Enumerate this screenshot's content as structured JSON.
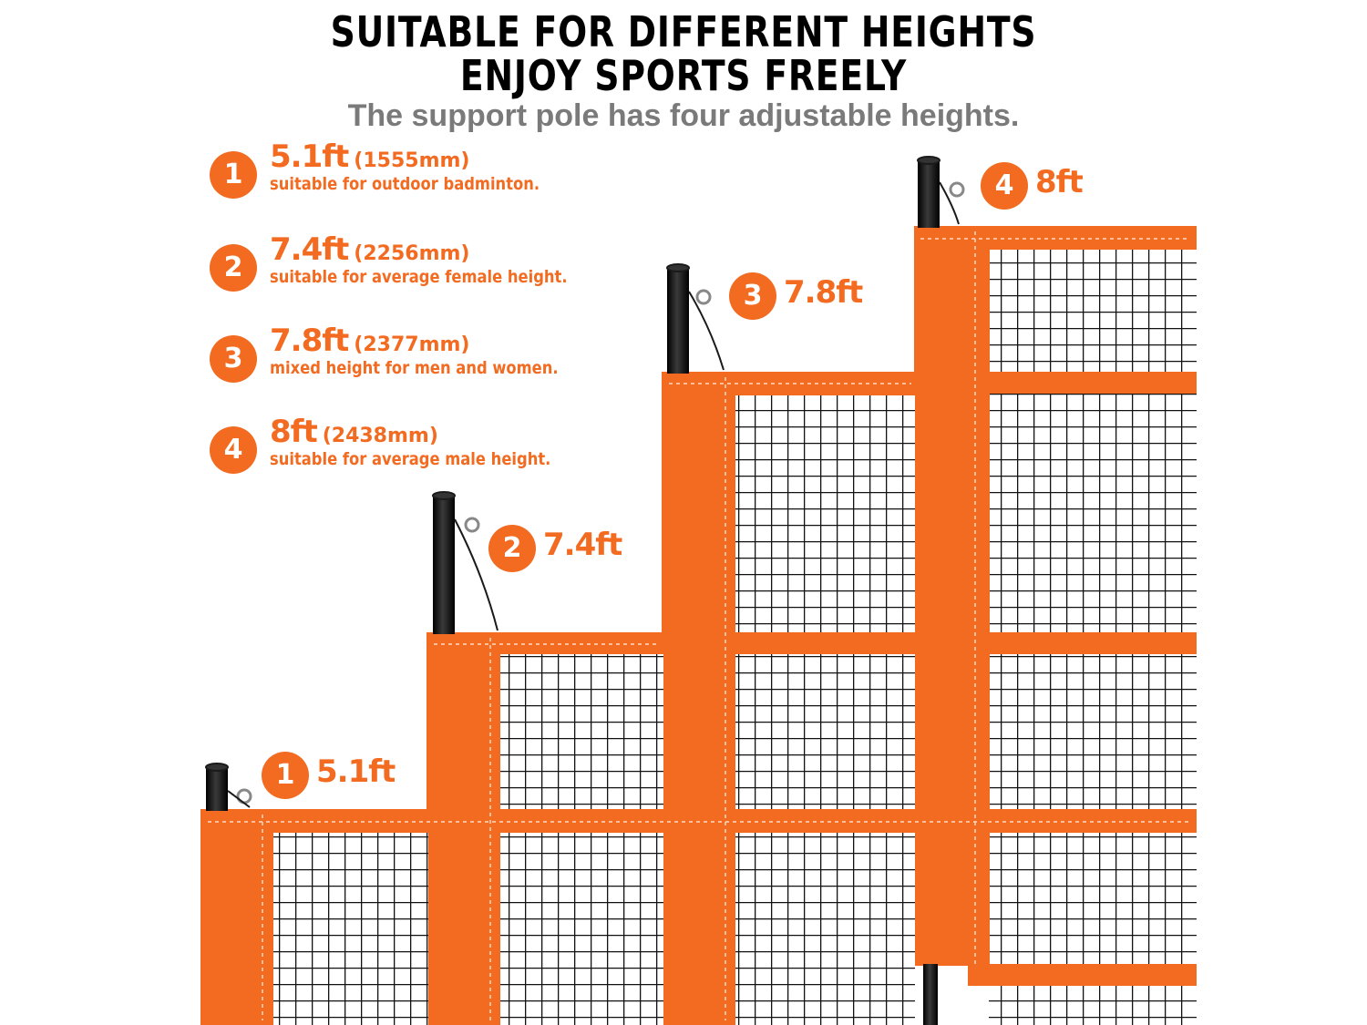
{
  "header": {
    "title_line1": "SUITABLE FOR DIFFERENT HEIGHTS",
    "title_line2": "ENJOY SPORTS FREELY",
    "subtitle": "The support pole has four adjustable heights."
  },
  "specs": [
    {
      "num": "1",
      "ft": "5.1ft",
      "mm": "(1555mm)",
      "desc": "suitable for outdoor badminton."
    },
    {
      "num": "2",
      "ft": "7.4ft",
      "mm": "(2256mm)",
      "desc": "suitable for average female height."
    },
    {
      "num": "3",
      "ft": "7.8ft",
      "mm": "(2377mm)",
      "desc": "mixed height for men and women."
    },
    {
      "num": "4",
      "ft": "8ft",
      "mm": "(2438mm)",
      "desc": "suitable for average male height."
    }
  ],
  "callouts": [
    {
      "num": "1",
      "label": "5.1ft"
    },
    {
      "num": "2",
      "label": "7.4ft"
    },
    {
      "num": "3",
      "label": "7.8ft"
    },
    {
      "num": "4",
      "label": "8ft"
    }
  ],
  "colors": {
    "accent": "#f26b21",
    "net": "#111111",
    "pole": "#1a1a1a",
    "subtitle": "#7a7a7a"
  }
}
